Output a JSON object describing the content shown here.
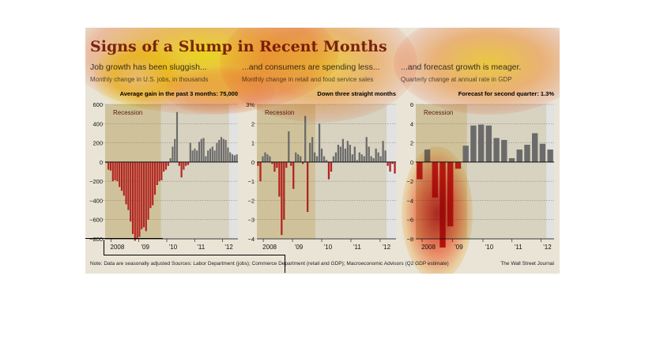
{
  "title": "Signs of a Slump in Recent Months",
  "note": "Note: Data are seasonally adjusted   Sources: Labor Department (jobs); Commerce Department (retail and GDP); Macroeconomic Advisors (Q2 GDP estimate)",
  "source": "The Wall Street Journal",
  "colors": {
    "negative": "#b2231f",
    "positive": "#6b6b6b",
    "recession": "#cfc29b",
    "forecast": "#e6e6ea"
  },
  "chart_data": [
    {
      "type": "bar",
      "title": "Job growth has been sluggish...",
      "subtitle": "Monthly change in U.S. jobs, in thousands",
      "annotation_label": "Average gain in the past 3 months:",
      "annotation_value": "75,000",
      "recession_label": "Recession",
      "ylim": [
        -800,
        600
      ],
      "yticks": [
        "600",
        "400",
        "200",
        "0",
        "−200",
        "−400",
        "−600",
        "−800"
      ],
      "xticks": [
        "2008",
        "'09",
        "'10",
        "'11",
        "'12"
      ],
      "values": [
        -10,
        -80,
        -90,
        -200,
        -190,
        -200,
        -260,
        -300,
        -350,
        -440,
        -500,
        -620,
        -750,
        -820,
        -800,
        -780,
        -700,
        -680,
        -720,
        -600,
        -480,
        -450,
        -340,
        -240,
        -200,
        -190,
        -100,
        -80,
        -40,
        40,
        160,
        240,
        520,
        -40,
        -160,
        -80,
        -40,
        -30,
        200,
        120,
        140,
        120,
        210,
        240,
        250,
        60,
        120,
        140,
        160,
        120,
        200,
        230,
        260,
        240,
        230,
        150,
        100,
        80,
        70,
        80
      ],
      "forecast_from": 56
    },
    {
      "type": "bar",
      "title": "...and consumers are spending less...",
      "subtitle": "Monthly change in retail and food service sales",
      "annotation_label": "Down three straight months",
      "recession_label": "Recession",
      "ylim": [
        -4,
        3
      ],
      "yticks": [
        "3%",
        "2",
        "1",
        "0",
        "−1",
        "−2",
        "−3",
        "−4"
      ],
      "xticks": [
        "2008",
        "'09",
        "'10",
        "'11",
        "'12"
      ],
      "values": [
        -0.2,
        -1.0,
        0.3,
        0.5,
        0.4,
        0.3,
        -0.1,
        -0.5,
        -0.3,
        -1.8,
        -3.8,
        -3.0,
        -0.3,
        1.6,
        -0.2,
        -1.4,
        0.5,
        0.4,
        0.3,
        -0.1,
        2.4,
        -2.6,
        1.0,
        1.3,
        0.5,
        0.3,
        2.0,
        0.7,
        0.3,
        0.1,
        -0.9,
        -0.5,
        0.3,
        0.5,
        0.9,
        0.8,
        1.2,
        0.7,
        1.1,
        0.9,
        0.4,
        0.8,
        0.1,
        0.5,
        0.4,
        0.3,
        1.3,
        0.8,
        0.3,
        0.2,
        0.7,
        0.5,
        0.3,
        1.1,
        0.6,
        -0.2,
        -0.5,
        -0.1,
        -0.6
      ],
      "forecast_from": 55
    },
    {
      "type": "bar",
      "title": "...and forecast growth is meager.",
      "subtitle": "Quarterly change at annual rate in GDP",
      "annotation_label": "Forecast for second quarter:",
      "annotation_value": "1.3%",
      "recession_label": "Recession",
      "ylim": [
        -8,
        6
      ],
      "yticks": [
        "6",
        "4",
        "2",
        "0",
        "−2",
        "−4",
        "−6",
        "−8"
      ],
      "xticks": [
        "2008",
        "'09",
        "'10",
        "'11",
        "'12"
      ],
      "values": [
        -1.8,
        1.3,
        -3.7,
        -8.9,
        -6.7,
        -0.7,
        1.7,
        3.8,
        3.9,
        3.8,
        2.5,
        2.3,
        0.4,
        1.3,
        1.8,
        3.0,
        1.9,
        1.3
      ],
      "forecast_from": 17
    }
  ]
}
